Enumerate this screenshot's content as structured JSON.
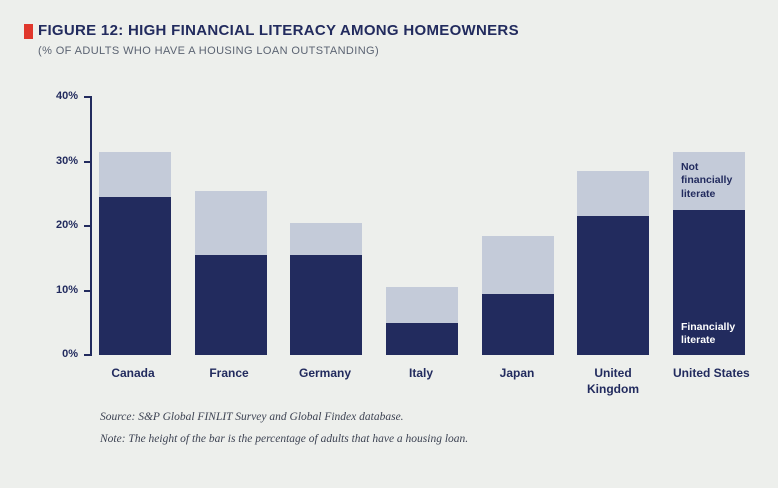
{
  "header": {
    "title": "FIGURE 12: HIGH FINANCIAL LITERACY AMONG HOMEOWNERS",
    "subtitle": "(% OF ADULTS WHO HAVE A HOUSING LOAN OUTSTANDING)"
  },
  "footer": {
    "source": "Source: S&P Global FINLIT Survey and Global Findex database.",
    "note": "Note: The height of the bar is the percentage of adults that have a housing loan."
  },
  "colors": {
    "accent_red": "#e0372c",
    "navy": "#222b5e",
    "gray_blue": "#c4cbd9",
    "background": "#edefec"
  },
  "chart_data": {
    "type": "bar",
    "stacked": true,
    "title": "FIGURE 12: HIGH FINANCIAL LITERACY AMONG HOMEOWNERS",
    "subtitle": "(% OF ADULTS WHO HAVE A HOUSING LOAN OUTSTANDING)",
    "categories": [
      "Canada",
      "France",
      "Germany",
      "Italy",
      "Japan",
      "United\nKingdom",
      "United States"
    ],
    "series": [
      {
        "name": "Financially literate",
        "color": "#222b5e",
        "values": [
          24.5,
          15.5,
          15.5,
          5,
          9.5,
          21.5,
          22.5
        ]
      },
      {
        "name": "Not financially literate",
        "color": "#c4cbd9",
        "values": [
          7,
          10,
          5,
          5.5,
          9,
          7,
          9
        ]
      }
    ],
    "totals": [
      31.5,
      25.5,
      20.5,
      10.5,
      18.5,
      28.5,
      31.5
    ],
    "xlabel": "",
    "ylabel": "",
    "ylim": [
      0,
      40
    ],
    "yticks": [
      "0%",
      "10%",
      "20%",
      "30%",
      "40%"
    ],
    "grid": false,
    "legend_position": "in-bar",
    "annotations": [
      {
        "bar": "United States",
        "segment": "not_literate",
        "text": "Not financially literate",
        "color": "#222b5e"
      },
      {
        "bar": "United States",
        "segment": "literate",
        "text": "Financially literate",
        "color": "#ffffff"
      }
    ]
  }
}
